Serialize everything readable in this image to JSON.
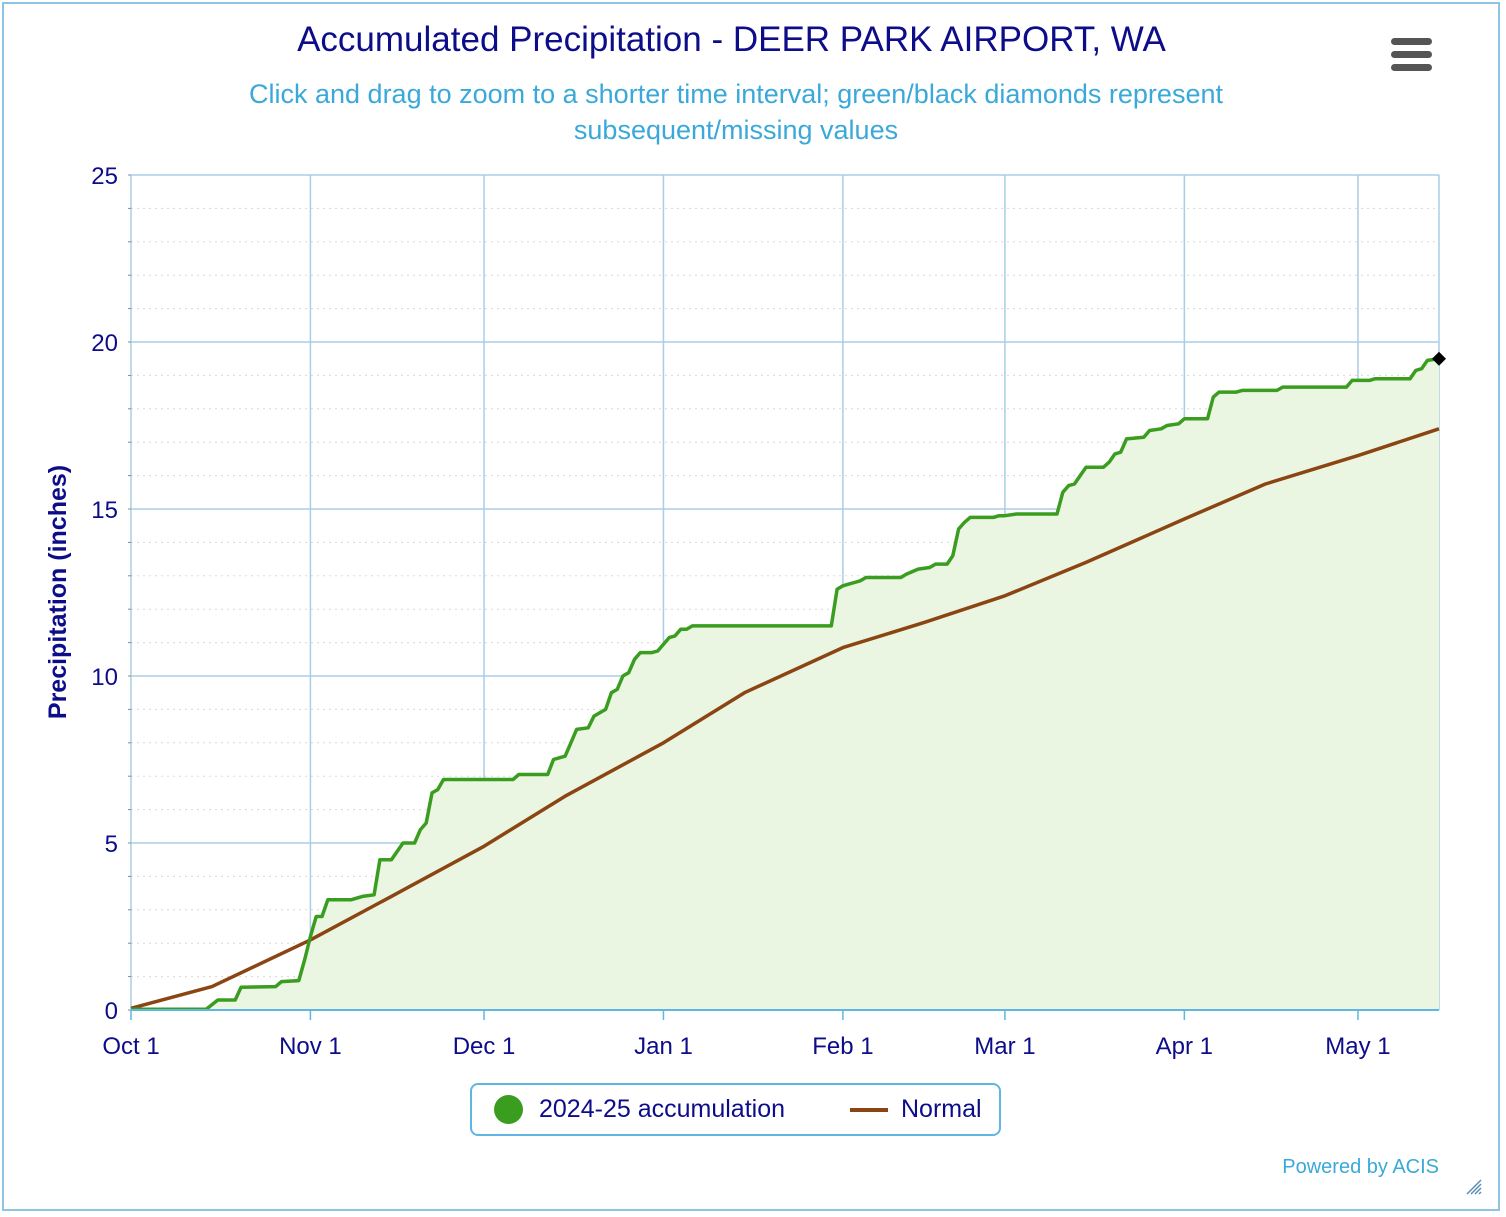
{
  "title": "Accumulated Precipitation - DEER PARK AIRPORT, WA",
  "subtitle": "Click and drag to zoom to a shorter time interval; green/black diamonds represent subsequent/missing values",
  "credits": "Powered by ACIS",
  "menu_icon": "hamburger-menu-icon",
  "resize_icon": "resize-grip-icon",
  "chart_data": {
    "type": "area",
    "title": "Accumulated Precipitation - DEER PARK AIRPORT, WA",
    "ylabel": "Precipitation (inches)",
    "xlabel": "",
    "ylim": [
      0,
      25
    ],
    "xlim": [
      "2024-10-01",
      "2025-05-15"
    ],
    "y_ticks": [
      "0",
      "5",
      "10",
      "15",
      "20",
      "25"
    ],
    "x_ticks": [
      {
        "label": "Oct 1",
        "date": "2024-10-01"
      },
      {
        "label": "Nov 1",
        "date": "2024-11-01"
      },
      {
        "label": "Dec 1",
        "date": "2024-12-01"
      },
      {
        "label": "Jan 1",
        "date": "2025-01-01"
      },
      {
        "label": "Feb 1",
        "date": "2025-02-01"
      },
      {
        "label": "Mar 1",
        "date": "2025-03-01"
      },
      {
        "label": "Apr 1",
        "date": "2025-04-01"
      },
      {
        "label": "May 1",
        "date": "2025-05-01"
      }
    ],
    "grid": true,
    "legend_position": "bottom-center",
    "series": [
      {
        "name": "2024-25 accumulation",
        "color": "#3a9d1f",
        "fill": "#eaf5e2",
        "points": [
          [
            "2024-10-01",
            0.02
          ],
          [
            "2024-10-14",
            0.02
          ],
          [
            "2024-10-16",
            0.3
          ],
          [
            "2024-10-19",
            0.3
          ],
          [
            "2024-10-20",
            0.68
          ],
          [
            "2024-10-26",
            0.7
          ],
          [
            "2024-10-27",
            0.85
          ],
          [
            "2024-10-30",
            0.88
          ],
          [
            "2024-10-31",
            1.5
          ],
          [
            "2024-11-01",
            2.2
          ],
          [
            "2024-11-02",
            2.8
          ],
          [
            "2024-11-03",
            2.8
          ],
          [
            "2024-11-04",
            3.3
          ],
          [
            "2024-11-08",
            3.3
          ],
          [
            "2024-11-10",
            3.4
          ],
          [
            "2024-11-12",
            3.45
          ],
          [
            "2024-11-13",
            4.5
          ],
          [
            "2024-11-15",
            4.5
          ],
          [
            "2024-11-17",
            5.0
          ],
          [
            "2024-11-19",
            5.0
          ],
          [
            "2024-11-20",
            5.4
          ],
          [
            "2024-11-21",
            5.6
          ],
          [
            "2024-11-22",
            6.5
          ],
          [
            "2024-11-23",
            6.6
          ],
          [
            "2024-11-24",
            6.9
          ],
          [
            "2024-12-06",
            6.9
          ],
          [
            "2024-12-07",
            7.05
          ],
          [
            "2024-12-12",
            7.05
          ],
          [
            "2024-12-13",
            7.5
          ],
          [
            "2024-12-14",
            7.55
          ],
          [
            "2024-12-15",
            7.6
          ],
          [
            "2024-12-16",
            8.0
          ],
          [
            "2024-12-17",
            8.4
          ],
          [
            "2024-12-19",
            8.45
          ],
          [
            "2024-12-20",
            8.8
          ],
          [
            "2024-12-21",
            8.9
          ],
          [
            "2024-12-22",
            9.0
          ],
          [
            "2024-12-23",
            9.5
          ],
          [
            "2024-12-24",
            9.6
          ],
          [
            "2024-12-25",
            10.0
          ],
          [
            "2024-12-26",
            10.1
          ],
          [
            "2024-12-27",
            10.5
          ],
          [
            "2024-12-28",
            10.7
          ],
          [
            "2024-12-30",
            10.7
          ],
          [
            "2024-12-31",
            10.75
          ],
          [
            "2025-01-02",
            11.15
          ],
          [
            "2025-01-03",
            11.2
          ],
          [
            "2025-01-04",
            11.4
          ],
          [
            "2025-01-05",
            11.4
          ],
          [
            "2025-01-06",
            11.5
          ],
          [
            "2025-01-30",
            11.5
          ],
          [
            "2025-01-31",
            12.6
          ],
          [
            "2025-02-01",
            12.7
          ],
          [
            "2025-02-02",
            12.75
          ],
          [
            "2025-02-03",
            12.8
          ],
          [
            "2025-02-04",
            12.85
          ],
          [
            "2025-02-05",
            12.95
          ],
          [
            "2025-02-11",
            12.95
          ],
          [
            "2025-02-12",
            13.05
          ],
          [
            "2025-02-14",
            13.2
          ],
          [
            "2025-02-16",
            13.25
          ],
          [
            "2025-02-17",
            13.35
          ],
          [
            "2025-02-19",
            13.35
          ],
          [
            "2025-02-20",
            13.6
          ],
          [
            "2025-02-21",
            14.4
          ],
          [
            "2025-02-22",
            14.6
          ],
          [
            "2025-02-23",
            14.75
          ],
          [
            "2025-02-27",
            14.75
          ],
          [
            "2025-02-28",
            14.8
          ],
          [
            "2025-03-01",
            14.8
          ],
          [
            "2025-03-03",
            14.85
          ],
          [
            "2025-03-10",
            14.85
          ],
          [
            "2025-03-11",
            15.5
          ],
          [
            "2025-03-12",
            15.7
          ],
          [
            "2025-03-13",
            15.75
          ],
          [
            "2025-03-14",
            16.0
          ],
          [
            "2025-03-15",
            16.25
          ],
          [
            "2025-03-18",
            16.25
          ],
          [
            "2025-03-19",
            16.4
          ],
          [
            "2025-03-20",
            16.65
          ],
          [
            "2025-03-21",
            16.7
          ],
          [
            "2025-03-22",
            17.1
          ],
          [
            "2025-03-25",
            17.15
          ],
          [
            "2025-03-26",
            17.35
          ],
          [
            "2025-03-28",
            17.4
          ],
          [
            "2025-03-29",
            17.5
          ],
          [
            "2025-03-31",
            17.55
          ],
          [
            "2025-04-01",
            17.7
          ],
          [
            "2025-04-05",
            17.7
          ],
          [
            "2025-04-06",
            18.35
          ],
          [
            "2025-04-07",
            18.5
          ],
          [
            "2025-04-10",
            18.5
          ],
          [
            "2025-04-11",
            18.55
          ],
          [
            "2025-04-17",
            18.55
          ],
          [
            "2025-04-18",
            18.65
          ],
          [
            "2025-04-29",
            18.65
          ],
          [
            "2025-04-30",
            18.85
          ],
          [
            "2025-05-03",
            18.85
          ],
          [
            "2025-05-04",
            18.9
          ],
          [
            "2025-05-10",
            18.9
          ],
          [
            "2025-05-11",
            19.15
          ],
          [
            "2025-05-12",
            19.2
          ],
          [
            "2025-05-13",
            19.45
          ],
          [
            "2025-05-15",
            19.5
          ]
        ]
      },
      {
        "name": "Normal",
        "color": "#8b4513",
        "points": [
          [
            "2024-10-01",
            0.05
          ],
          [
            "2024-10-15",
            0.7
          ],
          [
            "2024-11-01",
            2.1
          ],
          [
            "2024-11-15",
            3.4
          ],
          [
            "2024-12-01",
            4.9
          ],
          [
            "2024-12-15",
            6.4
          ],
          [
            "2025-01-01",
            8.0
          ],
          [
            "2025-01-15",
            9.5
          ],
          [
            "2025-02-01",
            10.85
          ],
          [
            "2025-02-15",
            11.6
          ],
          [
            "2025-03-01",
            12.4
          ],
          [
            "2025-03-15",
            13.4
          ],
          [
            "2025-04-01",
            14.7
          ],
          [
            "2025-04-15",
            15.75
          ],
          [
            "2025-05-01",
            16.6
          ],
          [
            "2025-05-15",
            17.4
          ]
        ]
      }
    ],
    "marker": {
      "date": "2025-05-15",
      "value": 19.5,
      "shape": "diamond",
      "color": "#000000"
    }
  }
}
